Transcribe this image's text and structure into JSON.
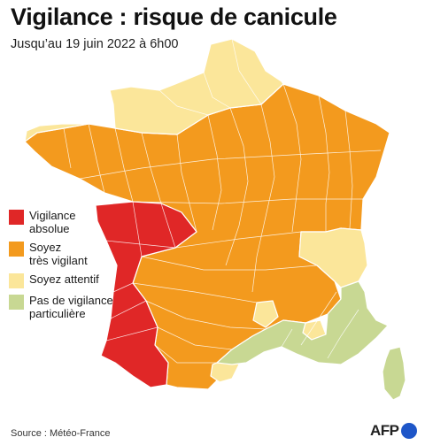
{
  "header": {
    "title": "Vigilance : risque de canicule",
    "subtitle": "Jusqu’au 19 juin 2022 à 6h00"
  },
  "legend": {
    "items": [
      {
        "label": "Vigilance\nabsolue",
        "color": "#e02727"
      },
      {
        "label": "Soyez\ntrès vigilant",
        "color": "#f39a1e"
      },
      {
        "label": "Soyez attentif",
        "color": "#fbe69a"
      },
      {
        "label": "Pas de vigilance\nparticulière",
        "color": "#c8d893"
      }
    ]
  },
  "footer": {
    "source": "Source : Météo-France",
    "logo": "AFP"
  },
  "colors": {
    "red": "#e02727",
    "orange": "#f39a1e",
    "yellow": "#fbe69a",
    "green": "#c8d893",
    "border": "#ffffff"
  }
}
